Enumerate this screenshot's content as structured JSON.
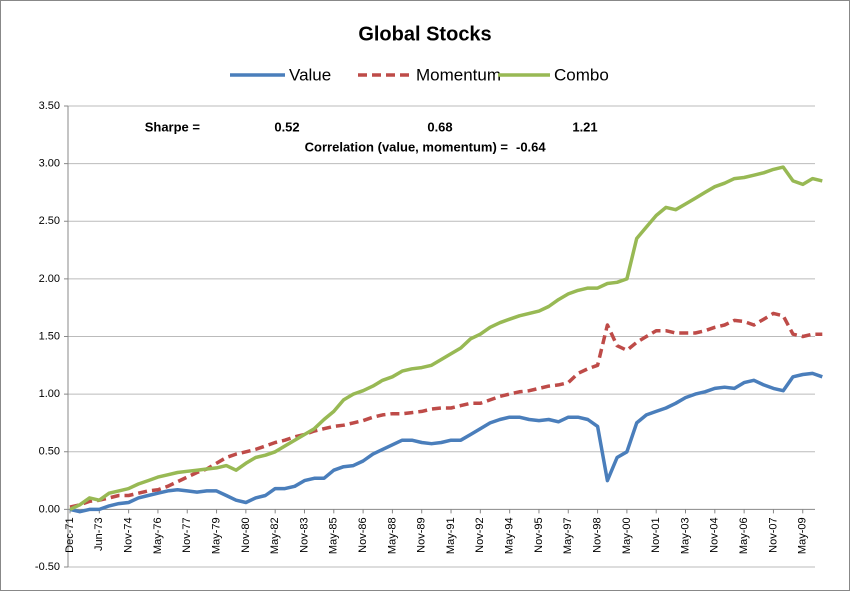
{
  "chart_data": {
    "type": "line",
    "title": "Global Stocks",
    "annotations": {
      "sharpe_label": "Sharpe =",
      "sharpe_values": [
        "0.52",
        "0.68",
        "1.21"
      ],
      "correlation_label": "Correlation (value, momentum) =",
      "correlation_value": "-0.64"
    },
    "categories": [
      "Dec-71",
      null,
      null,
      "Jun-73",
      null,
      null,
      "Nov-74",
      null,
      null,
      "May-76",
      null,
      null,
      "Nov-77",
      null,
      null,
      "May-79",
      null,
      null,
      "Nov-80",
      null,
      null,
      "May-82",
      null,
      null,
      "Nov-83",
      null,
      null,
      "May-85",
      null,
      null,
      "Nov-86",
      null,
      null,
      "May-88",
      null,
      null,
      "Nov-89",
      null,
      null,
      "May-91",
      null,
      null,
      "Nov-92",
      null,
      null,
      "May-94",
      null,
      null,
      "Nov-95",
      null,
      null,
      "May-97",
      null,
      null,
      "Nov-98",
      null,
      null,
      "May-00",
      null,
      null,
      "Nov-01",
      null,
      null,
      "May-03",
      null,
      null,
      "Nov-04",
      null,
      null,
      "May-06",
      null,
      null,
      "Nov-07",
      null,
      null,
      "May-09",
      null,
      null
    ],
    "series": [
      {
        "name": "Value",
        "color": "#4a7ebb",
        "style": "solid",
        "values": [
          0,
          -0.02,
          0.0,
          0.0,
          0.03,
          0.05,
          0.06,
          0.1,
          0.12,
          0.14,
          0.16,
          0.17,
          0.16,
          0.15,
          0.16,
          0.16,
          0.12,
          0.08,
          0.06,
          0.1,
          0.12,
          0.18,
          0.18,
          0.2,
          0.25,
          0.27,
          0.27,
          0.34,
          0.37,
          0.38,
          0.42,
          0.48,
          0.52,
          0.56,
          0.6,
          0.6,
          0.58,
          0.57,
          0.58,
          0.6,
          0.6,
          0.65,
          0.7,
          0.75,
          0.78,
          0.8,
          0.8,
          0.78,
          0.77,
          0.78,
          0.76,
          0.8,
          0.8,
          0.78,
          0.72,
          0.25,
          0.45,
          0.5,
          0.75,
          0.82,
          0.85,
          0.88,
          0.92,
          0.97,
          1.0,
          1.02,
          1.05,
          1.06,
          1.05,
          1.1,
          1.12,
          1.08,
          1.05,
          1.03,
          1.15,
          1.17,
          1.18,
          1.15
        ]
      },
      {
        "name": "Momentum",
        "color": "#be4b48",
        "style": "dashed",
        "values": [
          0.02,
          0.04,
          0.07,
          0.08,
          0.1,
          0.12,
          0.12,
          0.14,
          0.16,
          0.17,
          0.2,
          0.24,
          0.28,
          0.32,
          0.35,
          0.4,
          0.45,
          0.48,
          0.5,
          0.52,
          0.55,
          0.58,
          0.6,
          0.63,
          0.65,
          0.68,
          0.7,
          0.72,
          0.73,
          0.75,
          0.77,
          0.8,
          0.82,
          0.83,
          0.83,
          0.84,
          0.85,
          0.87,
          0.88,
          0.88,
          0.9,
          0.92,
          0.92,
          0.95,
          0.98,
          1.0,
          1.02,
          1.03,
          1.05,
          1.07,
          1.08,
          1.1,
          1.18,
          1.22,
          1.25,
          1.6,
          1.42,
          1.38,
          1.45,
          1.5,
          1.55,
          1.55,
          1.53,
          1.53,
          1.53,
          1.55,
          1.58,
          1.6,
          1.64,
          1.63,
          1.6,
          1.65,
          1.7,
          1.68,
          1.52,
          1.5,
          1.52,
          1.52
        ]
      },
      {
        "name": "Combo",
        "color": "#98b954",
        "style": "solid",
        "values": [
          0,
          0.04,
          0.1,
          0.08,
          0.14,
          0.16,
          0.18,
          0.22,
          0.25,
          0.28,
          0.3,
          0.32,
          0.33,
          0.34,
          0.35,
          0.36,
          0.38,
          0.34,
          0.4,
          0.45,
          0.47,
          0.5,
          0.55,
          0.6,
          0.65,
          0.7,
          0.78,
          0.85,
          0.95,
          1.0,
          1.03,
          1.07,
          1.12,
          1.15,
          1.2,
          1.22,
          1.23,
          1.25,
          1.3,
          1.35,
          1.4,
          1.48,
          1.52,
          1.58,
          1.62,
          1.65,
          1.68,
          1.7,
          1.72,
          1.76,
          1.82,
          1.87,
          1.9,
          1.92,
          1.92,
          1.96,
          1.97,
          2.0,
          2.35,
          2.45,
          2.55,
          2.62,
          2.6,
          2.65,
          2.7,
          2.75,
          2.8,
          2.83,
          2.87,
          2.88,
          2.9,
          2.92,
          2.95,
          2.97,
          2.85,
          2.82,
          2.87,
          2.85
        ]
      }
    ],
    "ylim": [
      -0.5,
      3.5
    ],
    "yticks": [
      {
        "value": -0.5,
        "label": "-0.50"
      },
      {
        "value": 0,
        "label": "0.00"
      },
      {
        "value": 0.5,
        "label": "0.50"
      },
      {
        "value": 1,
        "label": "1.00"
      },
      {
        "value": 1.5,
        "label": "1.50"
      },
      {
        "value": 2,
        "label": "2.00"
      },
      {
        "value": 2.5,
        "label": "2.50"
      },
      {
        "value": 3,
        "label": "3.00"
      },
      {
        "value": 3.5,
        "label": "3.50"
      }
    ],
    "grid": true,
    "legend": "top"
  }
}
